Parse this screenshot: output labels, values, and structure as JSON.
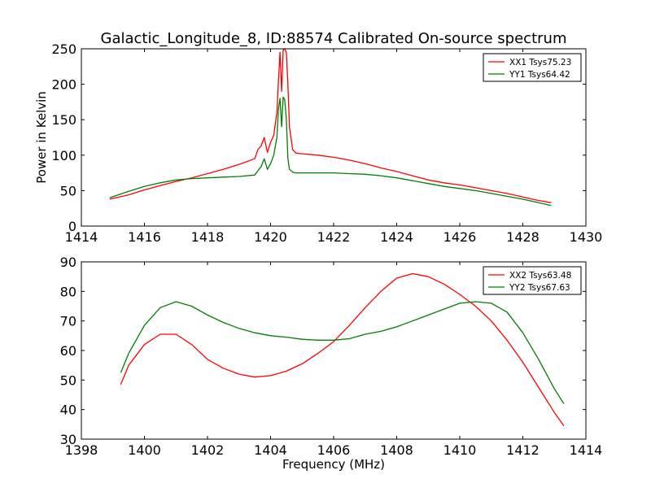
{
  "title": "Galactic_Longitude_8, ID:88574 Calibrated On-source spectrum",
  "colors": {
    "xx": "#ff0000",
    "yy": "#007f00",
    "axes": "#000000",
    "background": "#ffffff"
  },
  "chart_data": [
    {
      "type": "line",
      "xlabel": "",
      "ylabel": "Power in Kelvin",
      "xlim": [
        1414,
        1430
      ],
      "ylim": [
        0,
        250
      ],
      "xticks": [
        1414,
        1416,
        1418,
        1420,
        1422,
        1424,
        1426,
        1428,
        1430
      ],
      "yticks": [
        0,
        50,
        100,
        150,
        200,
        250
      ],
      "legend_position": "top-right",
      "grid": false,
      "series": [
        {
          "name": "XX1 Tsys75.23",
          "color": "#ff0000",
          "x": [
            1414.9,
            1415.5,
            1416.0,
            1416.5,
            1417.0,
            1417.5,
            1418.0,
            1418.5,
            1419.0,
            1419.5,
            1419.6,
            1419.7,
            1419.8,
            1419.9,
            1420.0,
            1420.1,
            1420.2,
            1420.25,
            1420.3,
            1420.35,
            1420.4,
            1420.45,
            1420.5,
            1420.55,
            1420.6,
            1420.7,
            1420.8,
            1421.0,
            1421.5,
            1422.0,
            1422.5,
            1423.0,
            1423.5,
            1424.0,
            1424.5,
            1425.0,
            1425.5,
            1426.0,
            1426.5,
            1427.0,
            1427.5,
            1428.0,
            1428.5,
            1428.9
          ],
          "y": [
            38,
            44,
            51,
            57,
            63,
            68,
            74,
            80,
            87,
            95,
            108,
            113,
            125,
            104,
            118,
            128,
            160,
            205,
            245,
            190,
            248,
            250,
            245,
            200,
            140,
            108,
            103,
            102,
            100,
            97,
            93,
            88,
            82,
            77,
            71,
            65,
            61,
            58,
            54,
            50,
            46,
            41,
            36,
            33
          ]
        },
        {
          "name": "YY1 Tsys64.42",
          "color": "#007f00",
          "x": [
            1414.9,
            1415.5,
            1416.0,
            1416.5,
            1417.0,
            1417.5,
            1418.0,
            1418.5,
            1419.0,
            1419.5,
            1419.6,
            1419.7,
            1419.8,
            1419.9,
            1420.0,
            1420.1,
            1420.2,
            1420.25,
            1420.3,
            1420.35,
            1420.4,
            1420.45,
            1420.5,
            1420.55,
            1420.6,
            1420.7,
            1420.8,
            1421.0,
            1421.5,
            1422.0,
            1422.5,
            1423.0,
            1423.5,
            1424.0,
            1424.5,
            1425.0,
            1425.5,
            1426.0,
            1426.5,
            1427.0,
            1427.5,
            1428.0,
            1428.5,
            1428.9
          ],
          "y": [
            40,
            49,
            56,
            61,
            65,
            67,
            68,
            69,
            70,
            72,
            78,
            84,
            95,
            80,
            88,
            100,
            125,
            165,
            180,
            140,
            182,
            178,
            150,
            95,
            80,
            76,
            75,
            75,
            75,
            75,
            74,
            73,
            71,
            68,
            64,
            60,
            56,
            53,
            50,
            46,
            42,
            38,
            33,
            29
          ]
        }
      ]
    },
    {
      "type": "line",
      "xlabel": "Frequency (MHz)",
      "ylabel": "",
      "xlim": [
        1398,
        1414
      ],
      "ylim": [
        30,
        90
      ],
      "xticks": [
        1398,
        1400,
        1402,
        1404,
        1406,
        1408,
        1410,
        1412,
        1414
      ],
      "yticks": [
        30,
        40,
        50,
        60,
        70,
        80,
        90
      ],
      "legend_position": "top-right",
      "grid": false,
      "series": [
        {
          "name": "XX2 Tsys63.48",
          "color": "#ff0000",
          "x": [
            1399.25,
            1399.5,
            1400.0,
            1400.5,
            1401.0,
            1401.5,
            1402.0,
            1402.5,
            1403.0,
            1403.5,
            1404.0,
            1404.5,
            1405.0,
            1405.5,
            1406.0,
            1406.5,
            1407.0,
            1407.5,
            1408.0,
            1408.5,
            1409.0,
            1409.5,
            1410.0,
            1410.5,
            1411.0,
            1411.5,
            1412.0,
            1412.5,
            1413.0,
            1413.3
          ],
          "y": [
            48.5,
            55,
            62,
            65.5,
            65.5,
            62,
            57,
            54,
            52,
            51,
            51.5,
            53,
            55.5,
            59,
            63,
            68.5,
            74.5,
            80,
            84.5,
            86,
            85,
            82.5,
            79,
            75,
            70,
            63.5,
            56,
            47.5,
            39,
            34.5
          ]
        },
        {
          "name": "YY2 Tsys67.63",
          "color": "#007f00",
          "x": [
            1399.25,
            1399.5,
            1400.0,
            1400.5,
            1401.0,
            1401.5,
            1402.0,
            1402.5,
            1403.0,
            1403.5,
            1404.0,
            1404.5,
            1405.0,
            1405.5,
            1406.0,
            1406.5,
            1407.0,
            1407.5,
            1408.0,
            1408.5,
            1409.0,
            1409.5,
            1410.0,
            1410.5,
            1411.0,
            1411.5,
            1412.0,
            1412.5,
            1413.0,
            1413.3
          ],
          "y": [
            52.5,
            59,
            68.5,
            74.5,
            76.5,
            75,
            72,
            69.5,
            67.5,
            66,
            65,
            64.5,
            63.8,
            63.5,
            63.5,
            64,
            65.5,
            66.5,
            68,
            70,
            72,
            74,
            76,
            76.5,
            76,
            73,
            66,
            57,
            47,
            42
          ]
        }
      ]
    }
  ]
}
